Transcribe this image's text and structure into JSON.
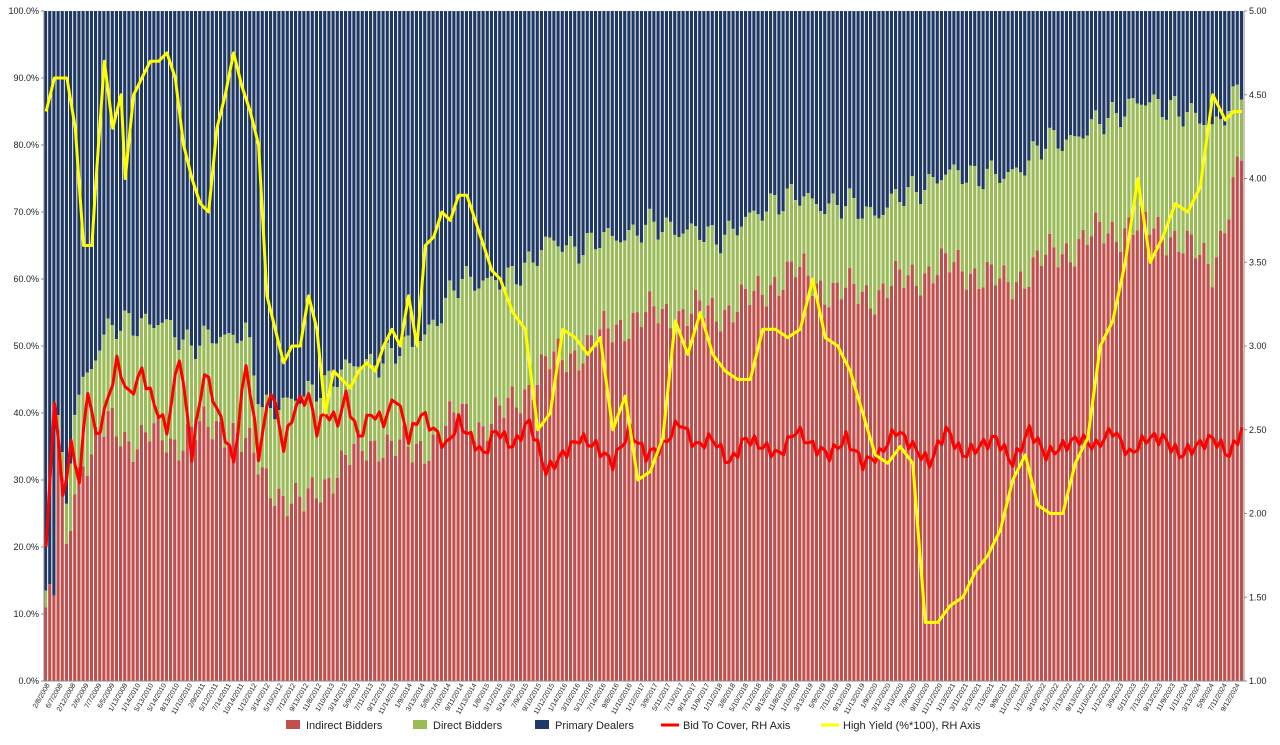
{
  "chart_data": {
    "type": "bar",
    "stacked": true,
    "left_axis": {
      "min": 0,
      "max": 100,
      "ticks": [
        "0.0%",
        "10.0%",
        "20.0%",
        "30.0%",
        "40.0%",
        "50.0%",
        "60.0%",
        "70.0%",
        "80.0%",
        "90.0%",
        "100.0%"
      ]
    },
    "right_axis": {
      "min": 1.0,
      "max": 5.0,
      "ticks": [
        "1.00",
        "1.50",
        "2.00",
        "2.50",
        "3.00",
        "3.50",
        "4.00",
        "4.50",
        "5.00"
      ]
    },
    "legend_position": "bottom",
    "grid": false,
    "colors": {
      "indirect": "#c0504d",
      "direct": "#9bbb59",
      "primary": "#1f3864",
      "bid_to_cover": "#ff0000",
      "high_yield": "#ffff00"
    },
    "x_tick_labels": [
      "2/8/2008",
      "6/7/2008",
      "2/12/2008",
      "2/6/2009",
      "7/7/2009",
      "6/5/2009",
      "1/13/2009",
      "1/14/2010",
      "5/13/2010",
      "5/14/2010",
      "8/13/2010",
      "11/10/2010",
      "2/9/2011",
      "5/12/2011",
      "7/14/2011",
      "10/14/2011",
      "1/12/2012",
      "3/14/2012",
      "5/10/2012",
      "7/12/2012",
      "9/13/2012",
      "11/8/2012",
      "1/10/2013",
      "3/14/2013",
      "5/9/2013",
      "7/11/2013",
      "9/12/2013",
      "11/14/2013",
      "1/9/2014",
      "3/13/2014",
      "5/8/2014",
      "7/10/2014",
      "9/11/2014",
      "11/13/2014",
      "1/8/2015",
      "3/12/2015",
      "5/14/2015",
      "7/9/2015",
      "9/10/2015",
      "11/12/2015",
      "1/14/2016",
      "3/10/2016",
      "5/12/2016",
      "7/14/2016",
      "9/8/2016",
      "11/10/2016",
      "1/12/2017",
      "3/9/2017",
      "5/11/2017",
      "7/13/2017",
      "9/14/2017",
      "11/9/2017",
      "1/11/2018",
      "3/8/2018",
      "5/10/2018",
      "7/12/2018",
      "9/13/2018",
      "11/8/2018",
      "1/10/2019",
      "3/13/2019",
      "5/9/2019",
      "7/11/2019",
      "9/12/2019",
      "11/13/2019",
      "1/9/2020",
      "3/12/2020",
      "5/13/2020",
      "7/9/2020",
      "9/10/2020",
      "11/12/2020",
      "1/13/2021",
      "3/11/2021",
      "5/13/2021",
      "7/13/2021",
      "9/9/2021",
      "11/10/2021",
      "1/12/2022",
      "3/10/2022",
      "5/12/2022",
      "7/13/2022",
      "9/13/2022",
      "11/10/2022",
      "1/12/2023",
      "3/9/2023",
      "5/11/2023",
      "7/13/2023",
      "9/13/2023",
      "11/9/2023",
      "1/11/2024",
      "3/13/2024",
      "5/9/2024",
      "7/11/2024",
      "9/12/2024"
    ],
    "stack_knots": {
      "t": [
        0,
        2,
        3,
        5,
        7,
        10,
        15,
        20,
        25,
        30,
        35,
        40,
        45,
        48,
        52,
        57,
        62,
        70,
        80,
        88,
        95,
        100,
        105,
        110,
        120,
        130,
        140,
        150,
        160,
        170,
        175,
        180,
        190,
        200,
        210,
        220,
        230,
        240,
        250,
        260,
        270,
        275,
        280,
        287
      ],
      "indirect": [
        11,
        12,
        38,
        18,
        30,
        34,
        38,
        36,
        37,
        35,
        38,
        37,
        38,
        36,
        30,
        28,
        26,
        32,
        36,
        34,
        37,
        40,
        38,
        40,
        47,
        50,
        54,
        55,
        55,
        57,
        60,
        61,
        58,
        58,
        61,
        62,
        59,
        63,
        66,
        68,
        67,
        64,
        62,
        78
      ],
      "direct": [
        1,
        1,
        3,
        6,
        12,
        12,
        14,
        18,
        16,
        18,
        12,
        14,
        14,
        16,
        10,
        14,
        16,
        14,
        12,
        16,
        18,
        20,
        22,
        19,
        18,
        15,
        13,
        13,
        11,
        12,
        12,
        11,
        13,
        12,
        13,
        14,
        16,
        17,
        16,
        18,
        19,
        20,
        21,
        10
      ]
    },
    "bid_to_cover_knots": {
      "t": [
        0,
        1,
        2,
        4,
        6,
        8,
        10,
        12,
        14,
        17,
        20,
        23,
        26,
        29,
        32,
        35,
        38,
        42,
        45,
        48,
        51,
        54,
        57,
        60,
        63,
        65,
        67,
        70,
        72,
        75,
        78,
        81,
        84,
        87,
        90,
        93,
        96,
        99,
        102,
        105,
        108,
        112,
        116,
        120,
        124,
        128,
        132,
        136,
        140,
        144,
        148,
        152,
        156,
        160,
        164,
        168,
        172,
        176,
        180,
        184,
        188,
        192,
        196,
        200,
        204,
        208,
        212,
        216,
        220,
        224,
        228,
        232,
        236,
        240,
        244,
        248,
        252,
        256,
        260,
        264,
        268,
        272,
        276,
        280,
        284,
        287
      ],
      "values": [
        1.8,
        2.2,
        2.7,
        2.1,
        2.4,
        2.2,
        2.75,
        2.45,
        2.6,
        2.9,
        2.7,
        2.85,
        2.65,
        2.5,
        2.95,
        2.35,
        2.85,
        2.55,
        2.3,
        2.9,
        2.35,
        2.75,
        2.4,
        2.65,
        2.7,
        2.5,
        2.6,
        2.55,
        2.7,
        2.45,
        2.6,
        2.55,
        2.7,
        2.45,
        2.6,
        2.5,
        2.4,
        2.55,
        2.45,
        2.35,
        2.5,
        2.4,
        2.55,
        2.25,
        2.35,
        2.45,
        2.4,
        2.3,
        2.5,
        2.35,
        2.4,
        2.55,
        2.4,
        2.45,
        2.3,
        2.45,
        2.4,
        2.35,
        2.5,
        2.4,
        2.35,
        2.45,
        2.3,
        2.35,
        2.5,
        2.4,
        2.3,
        2.5,
        2.35,
        2.4,
        2.45,
        2.3,
        2.5,
        2.35,
        2.4,
        2.45,
        2.4,
        2.5,
        2.35,
        2.45,
        2.45,
        2.35,
        2.4,
        2.45,
        2.35,
        2.5
      ]
    },
    "high_yield_knots": {
      "t": [
        0,
        2,
        5,
        7,
        9,
        11,
        12,
        14,
        16,
        18,
        19,
        21,
        23,
        25,
        27,
        29,
        31,
        33,
        35,
        37,
        39,
        41,
        43,
        45,
        47,
        49,
        51,
        53,
        55,
        57,
        59,
        61,
        63,
        65,
        67,
        69,
        71,
        73,
        75,
        77,
        79,
        81,
        83,
        85,
        87,
        89,
        91,
        93,
        95,
        97,
        99,
        101,
        103,
        105,
        107,
        109,
        112,
        115,
        118,
        121,
        124,
        127,
        130,
        133,
        136,
        139,
        142,
        145,
        148,
        151,
        154,
        157,
        160,
        163,
        166,
        169,
        172,
        175,
        178,
        181,
        184,
        187,
        190,
        193,
        196,
        199,
        202,
        205,
        208,
        211,
        214,
        217,
        220,
        223,
        226,
        229,
        232,
        235,
        238,
        241,
        244,
        247,
        250,
        253,
        256,
        259,
        262,
        265,
        268,
        271,
        274,
        277,
        280,
        283,
        285,
        287
      ],
      "values": [
        4.4,
        4.6,
        4.6,
        4.3,
        3.6,
        3.6,
        4.0,
        4.7,
        4.3,
        4.5,
        4.0,
        4.5,
        4.6,
        4.7,
        4.7,
        4.75,
        4.6,
        4.2,
        4.0,
        3.85,
        3.8,
        4.3,
        4.5,
        4.75,
        4.55,
        4.4,
        4.2,
        3.3,
        3.1,
        2.9,
        3.0,
        3.0,
        3.3,
        3.1,
        2.6,
        2.85,
        2.8,
        2.75,
        2.85,
        2.9,
        2.85,
        3.0,
        3.1,
        3.0,
        3.3,
        3.0,
        3.6,
        3.65,
        3.8,
        3.75,
        3.9,
        3.9,
        3.75,
        3.6,
        3.45,
        3.4,
        3.2,
        3.1,
        2.5,
        2.6,
        3.1,
        3.05,
        2.95,
        3.05,
        2.5,
        2.7,
        2.2,
        2.25,
        2.45,
        3.15,
        2.95,
        3.2,
        2.95,
        2.85,
        2.8,
        2.8,
        3.1,
        3.1,
        3.05,
        3.1,
        3.4,
        3.05,
        3.0,
        2.85,
        2.6,
        2.35,
        2.3,
        2.4,
        2.3,
        1.35,
        1.35,
        1.45,
        1.5,
        1.65,
        1.75,
        1.9,
        2.2,
        2.35,
        2.05,
        2.0,
        2.0,
        2.3,
        2.45,
        3.0,
        3.15,
        3.5,
        4.0,
        3.5,
        3.65,
        3.85,
        3.8,
        3.95,
        4.5,
        4.35,
        4.4,
        4.4
      ]
    }
  },
  "legend": [
    {
      "label": "Indirect Bidders",
      "color": "#c0504d",
      "kind": "box"
    },
    {
      "label": "Direct Bidders",
      "color": "#9bbb59",
      "kind": "box"
    },
    {
      "label": "Primary Dealers",
      "color": "#1f3864",
      "kind": "box"
    },
    {
      "label": "Bid To Cover, RH Axis",
      "color": "#ff0000",
      "kind": "line"
    },
    {
      "label": "High Yield (%*100), RH Axis",
      "color": "#ffff00",
      "kind": "line"
    }
  ]
}
